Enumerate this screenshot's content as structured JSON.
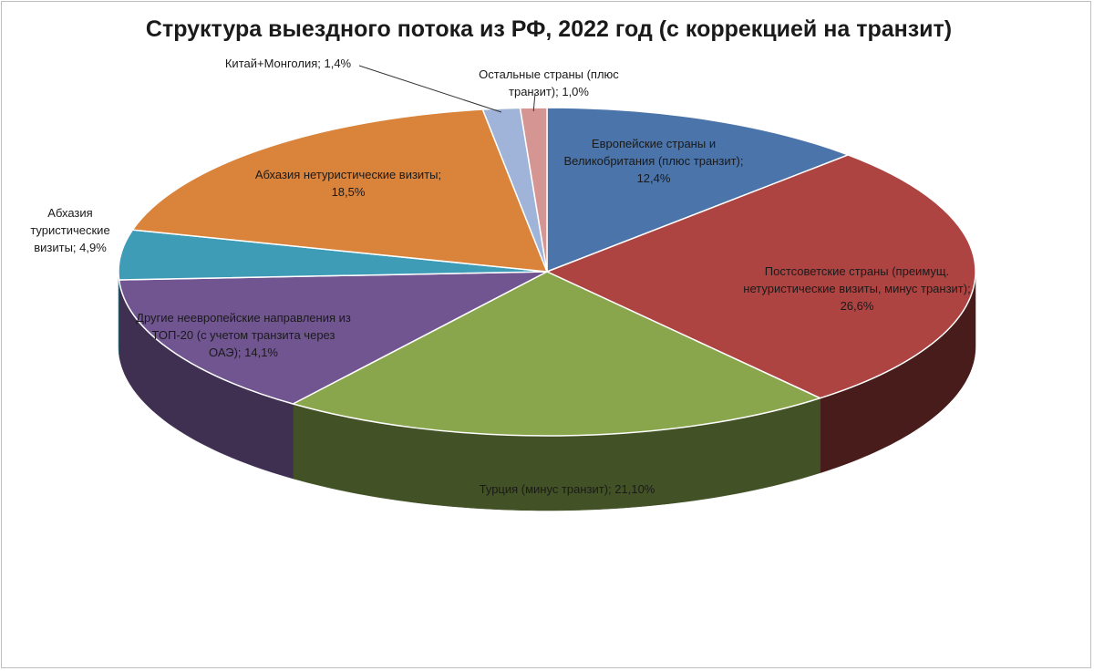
{
  "chart_data": {
    "type": "pie",
    "style": "3d",
    "title": "Структура выездного потока из РФ, 2022 год (с коррекцией на транзит)",
    "slices": [
      {
        "label": "Европейские страны и Великобритания (плюс транзит); 12,4%",
        "value": 12.4,
        "color": "#4a74aa"
      },
      {
        "label": "Постсоветские страны (преимущ. нетуристические визиты, минус транзит); 26,6%",
        "value": 26.6,
        "color": "#ad4442"
      },
      {
        "label": "Турция (минус транзит);  21,10%",
        "value": 21.1,
        "color": "#8aa64d"
      },
      {
        "label": "Другие неевропейские направления из ТОП-20 (с учетом транзита через ОАЭ); 14,1%",
        "value": 14.1,
        "color": "#705591"
      },
      {
        "label": "Абхазия туристические визиты; 4,9%",
        "value": 4.9,
        "color": "#3f9cb7"
      },
      {
        "label": "Абхазия нетуристические визиты; 18,5%",
        "value": 18.5,
        "color": "#d9833b"
      },
      {
        "label": "Китай+Монголия; 1,4%",
        "value": 1.4,
        "color": "#9fb4d8"
      },
      {
        "label": "Остальные страны (плюс транзит); 1,0%",
        "value": 1.0,
        "color": "#d49593"
      }
    ]
  }
}
